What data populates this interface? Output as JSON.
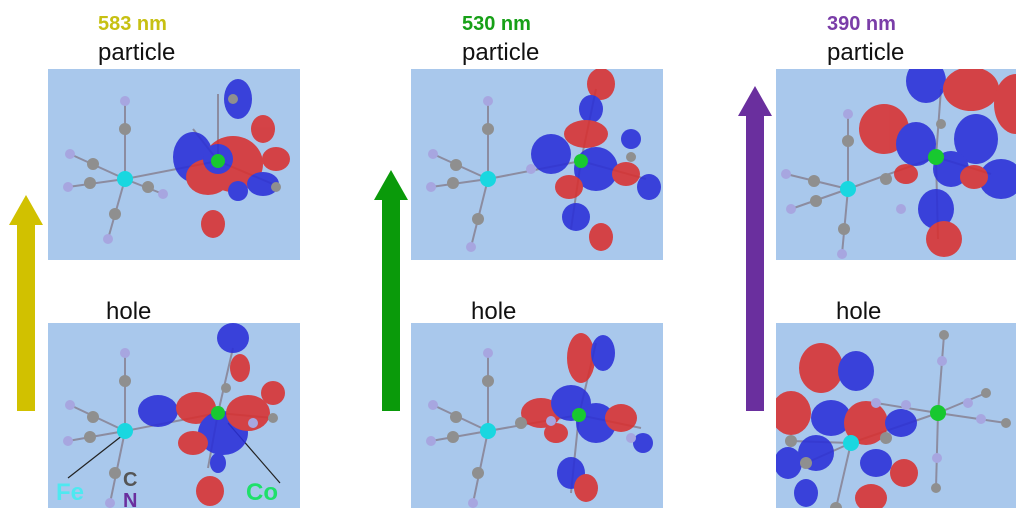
{
  "columns": [
    {
      "wavelength": "583 nm",
      "wavelength_color": "#c7c012",
      "top_label": "particle",
      "bottom_label": "hole",
      "arrow_color": "#d1c100"
    },
    {
      "wavelength": "530 nm",
      "wavelength_color": "#17a017",
      "top_label": "particle",
      "bottom_label": "hole",
      "arrow_color": "#0a9a0a"
    },
    {
      "wavelength": "390 nm",
      "wavelength_color": "#7a3da8",
      "top_label": "particle",
      "bottom_label": "hole",
      "arrow_color": "#6a2f9e"
    }
  ],
  "atom_labels": {
    "fe": "Fe",
    "c": "C",
    "n": "N",
    "co": "Co",
    "fe_color": "#4ee8f0",
    "c_color": "#555555",
    "n_color": "#6a2f9e",
    "co_color": "#1ee06a"
  },
  "colors": {
    "panel_bg": "#a9c8ec",
    "lobe_red": "#d93030",
    "lobe_blue": "#2a2fd8",
    "atom_c": "#8f8f8f",
    "atom_n": "#a7a6e0",
    "atom_fe": "#19d7e0",
    "atom_co": "#18c830"
  }
}
